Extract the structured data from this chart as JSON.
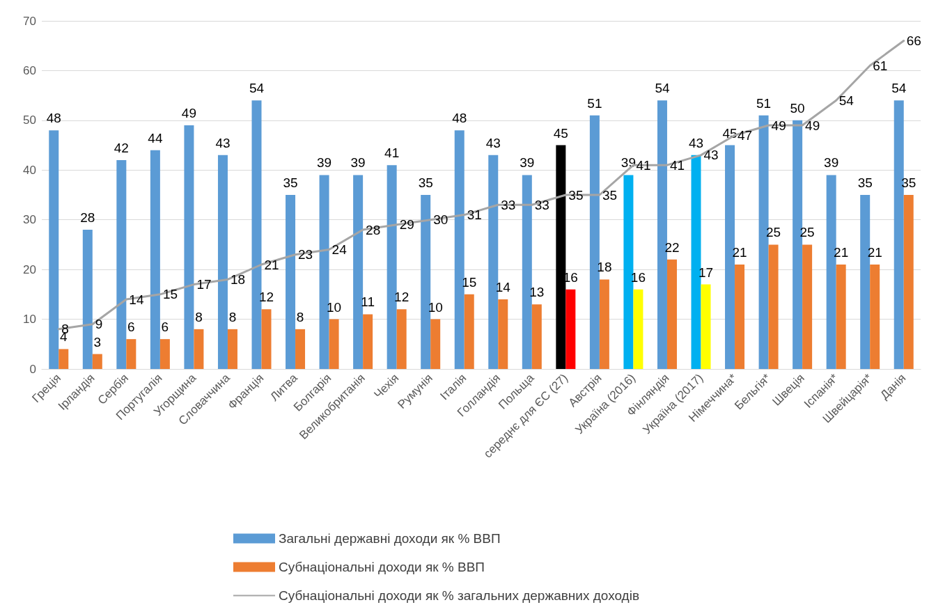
{
  "chart_data": {
    "type": "bar",
    "categories": [
      "Греція",
      "Ірландія",
      "Сербія",
      "Португалія",
      "Угорщина",
      "Словаччина",
      "Франція",
      "Литва",
      "Болгарія",
      "Великобританія",
      "Чехія",
      "Румунія",
      "Італія",
      "Голландія",
      "Польща",
      "середнє для ЄС (27)",
      "Австрія",
      "Україна (2016)",
      "Фінляндія",
      "Україна (2017)",
      "Німеччина*",
      "Бельгія*",
      "Швеція",
      "Іспанія*",
      "Швейцарія*",
      "Данія"
    ],
    "series": [
      {
        "name": "Загальні державні доходи як % ВВП",
        "color": "#5b9bd5",
        "colors": [
          "#5b9bd5",
          "#5b9bd5",
          "#5b9bd5",
          "#5b9bd5",
          "#5b9bd5",
          "#5b9bd5",
          "#5b9bd5",
          "#5b9bd5",
          "#5b9bd5",
          "#5b9bd5",
          "#5b9bd5",
          "#5b9bd5",
          "#5b9bd5",
          "#5b9bd5",
          "#5b9bd5",
          "#000000",
          "#5b9bd5",
          "#00b0f0",
          "#5b9bd5",
          "#00b0f0",
          "#5b9bd5",
          "#5b9bd5",
          "#5b9bd5",
          "#5b9bd5",
          "#5b9bd5",
          "#5b9bd5"
        ],
        "values": [
          48,
          28,
          42,
          44,
          49,
          43,
          54,
          35,
          39,
          39,
          41,
          35,
          48,
          43,
          39,
          45,
          51,
          39,
          54,
          43,
          45,
          51,
          50,
          39,
          35,
          54
        ]
      },
      {
        "name": "Субнаціональні доходи як % ВВП",
        "color": "#ed7d31",
        "colors": [
          "#ed7d31",
          "#ed7d31",
          "#ed7d31",
          "#ed7d31",
          "#ed7d31",
          "#ed7d31",
          "#ed7d31",
          "#ed7d31",
          "#ed7d31",
          "#ed7d31",
          "#ed7d31",
          "#ed7d31",
          "#ed7d31",
          "#ed7d31",
          "#ed7d31",
          "#ff0000",
          "#ed7d31",
          "#ffff00",
          "#ed7d31",
          "#ffff00",
          "#ed7d31",
          "#ed7d31",
          "#ed7d31",
          "#ed7d31",
          "#ed7d31",
          "#ed7d31"
        ],
        "values": [
          4,
          3,
          6,
          6,
          8,
          8,
          12,
          8,
          10,
          11,
          12,
          10,
          15,
          14,
          13,
          16,
          18,
          16,
          22,
          17,
          21,
          25,
          25,
          21,
          21,
          35
        ]
      },
      {
        "name": "Субнаціональні доходи як % загальних державних доходів",
        "type": "line",
        "color": "#a5a5a5",
        "values": [
          8,
          9,
          14,
          15,
          17,
          18,
          21,
          23,
          24,
          28,
          29,
          30,
          31,
          33,
          33,
          35,
          35,
          41,
          41,
          43,
          47,
          49,
          49,
          54,
          61,
          66
        ]
      }
    ],
    "ylim": [
      0,
      70
    ],
    "yticks": [
      0,
      10,
      20,
      30,
      40,
      50,
      60,
      70
    ],
    "grid": "y",
    "legend": "bottom",
    "data_labels": true,
    "marker": "none",
    "line_style": "solid"
  }
}
